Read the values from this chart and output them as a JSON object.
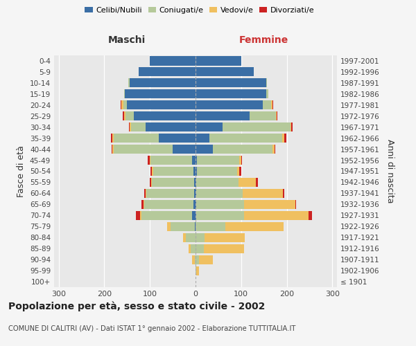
{
  "age_groups": [
    "100+",
    "95-99",
    "90-94",
    "85-89",
    "80-84",
    "75-79",
    "70-74",
    "65-69",
    "60-64",
    "55-59",
    "50-54",
    "45-49",
    "40-44",
    "35-39",
    "30-34",
    "25-29",
    "20-24",
    "15-19",
    "10-14",
    "5-9",
    "0-4"
  ],
  "birth_years": [
    "≤ 1901",
    "1902-1906",
    "1907-1911",
    "1912-1916",
    "1917-1921",
    "1922-1926",
    "1927-1931",
    "1932-1936",
    "1937-1941",
    "1942-1946",
    "1947-1951",
    "1952-1956",
    "1957-1961",
    "1962-1966",
    "1967-1971",
    "1972-1976",
    "1977-1981",
    "1982-1986",
    "1987-1991",
    "1992-1996",
    "1997-2001"
  ],
  "maschi": {
    "celibi": [
      0,
      0,
      0,
      0,
      0,
      2,
      8,
      4,
      3,
      3,
      5,
      7,
      50,
      80,
      110,
      135,
      150,
      155,
      145,
      125,
      100
    ],
    "coniugati": [
      0,
      0,
      2,
      10,
      22,
      52,
      110,
      108,
      105,
      92,
      88,
      92,
      130,
      100,
      32,
      18,
      8,
      2,
      2,
      0,
      0
    ],
    "vedovi": [
      0,
      0,
      5,
      5,
      5,
      8,
      4,
      2,
      2,
      2,
      2,
      2,
      2,
      2,
      2,
      4,
      4,
      0,
      0,
      0,
      0
    ],
    "divorziati": [
      0,
      0,
      0,
      0,
      0,
      0,
      8,
      4,
      3,
      4,
      4,
      4,
      2,
      4,
      2,
      2,
      2,
      0,
      0,
      0,
      0
    ]
  },
  "femmine": {
    "nubili": [
      0,
      0,
      0,
      0,
      0,
      0,
      2,
      2,
      2,
      2,
      3,
      3,
      38,
      30,
      60,
      118,
      148,
      155,
      155,
      128,
      100
    ],
    "coniugate": [
      0,
      2,
      8,
      18,
      20,
      65,
      105,
      105,
      102,
      92,
      88,
      92,
      130,
      160,
      148,
      58,
      18,
      4,
      2,
      0,
      0
    ],
    "vedove": [
      0,
      5,
      30,
      88,
      88,
      128,
      140,
      112,
      88,
      38,
      5,
      5,
      5,
      5,
      2,
      2,
      2,
      0,
      0,
      0,
      0
    ],
    "divorziate": [
      0,
      0,
      0,
      0,
      0,
      0,
      8,
      2,
      2,
      5,
      5,
      2,
      2,
      4,
      2,
      2,
      2,
      0,
      0,
      0,
      0
    ]
  },
  "colors": {
    "celibi": "#3a6ea5",
    "coniugati": "#b5c99a",
    "vedovi": "#f0c060",
    "divorziati": "#cc2222"
  },
  "xlim": 310,
  "title": "Popolazione per età, sesso e stato civile - 2002",
  "subtitle": "COMUNE DI CALITRI (AV) - Dati ISTAT 1° gennaio 2002 - Elaborazione TUTTITALIA.IT",
  "ylabel_left": "Fasce di età",
  "ylabel_right": "Anni di nascita",
  "xlabel_left": "Maschi",
  "xlabel_right": "Femmine",
  "bg_color": "#f5f5f5",
  "plot_bg": "#e8e8e8"
}
